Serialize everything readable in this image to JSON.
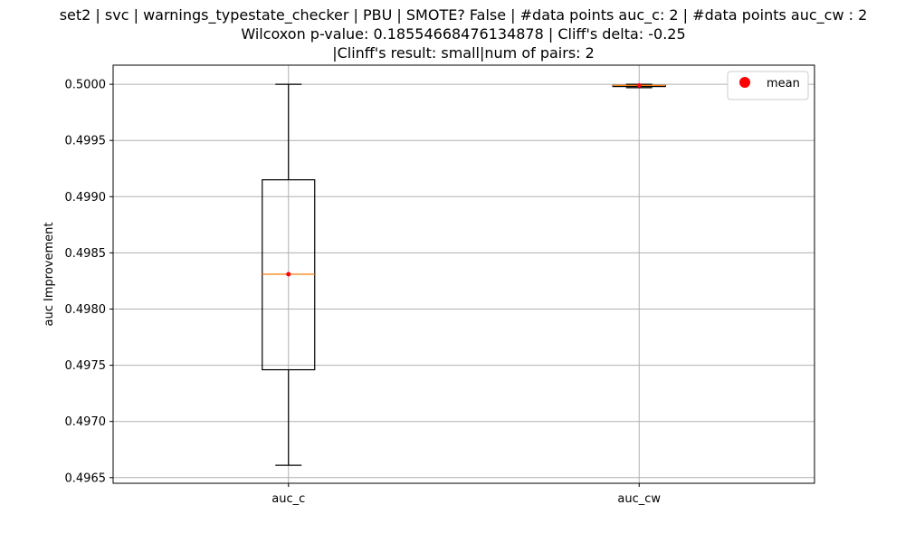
{
  "chart_data": {
    "type": "box",
    "title_lines": [
      "set2 | svc | warnings_typestate_checker | PBU | SMOTE? False | #data points auc_c: 2 | #data points auc_cw : 2",
      "Wilcoxon p-value: 0.18554668476134878 | Cliff's delta: -0.25",
      "|Clinff's result: small|num of pairs: 2"
    ],
    "ylabel": "auc Improvement",
    "xlabel": "",
    "ylim": [
      0.49645,
      0.50017
    ],
    "yticks": [
      0.4965,
      0.497,
      0.4975,
      0.498,
      0.4985,
      0.499,
      0.4995,
      0.5
    ],
    "ytick_labels": [
      "0.4965",
      "0.4970",
      "0.4975",
      "0.4980",
      "0.4985",
      "0.4990",
      "0.4995",
      "0.5000"
    ],
    "grid": true,
    "categories": [
      "auc_c",
      "auc_cw"
    ],
    "boxes": [
      {
        "name": "auc_c",
        "whisker_low": 0.49661,
        "q1": 0.49746,
        "median": 0.49831,
        "q3": 0.49915,
        "whisker_high": 0.5,
        "mean": 0.49831
      },
      {
        "name": "auc_cw",
        "whisker_low": 0.49997,
        "q1": 0.49998,
        "median": 0.49999,
        "q3": 0.49999,
        "whisker_high": 0.5,
        "mean": 0.49999
      }
    ],
    "legend": {
      "placement": "top-right",
      "entries": [
        {
          "label": "mean",
          "marker": "red-dot"
        }
      ]
    },
    "colors": {
      "box": "#000000",
      "median": "#ff7f0e",
      "mean": "#ff0000",
      "grid": "#b0b0b0"
    }
  }
}
